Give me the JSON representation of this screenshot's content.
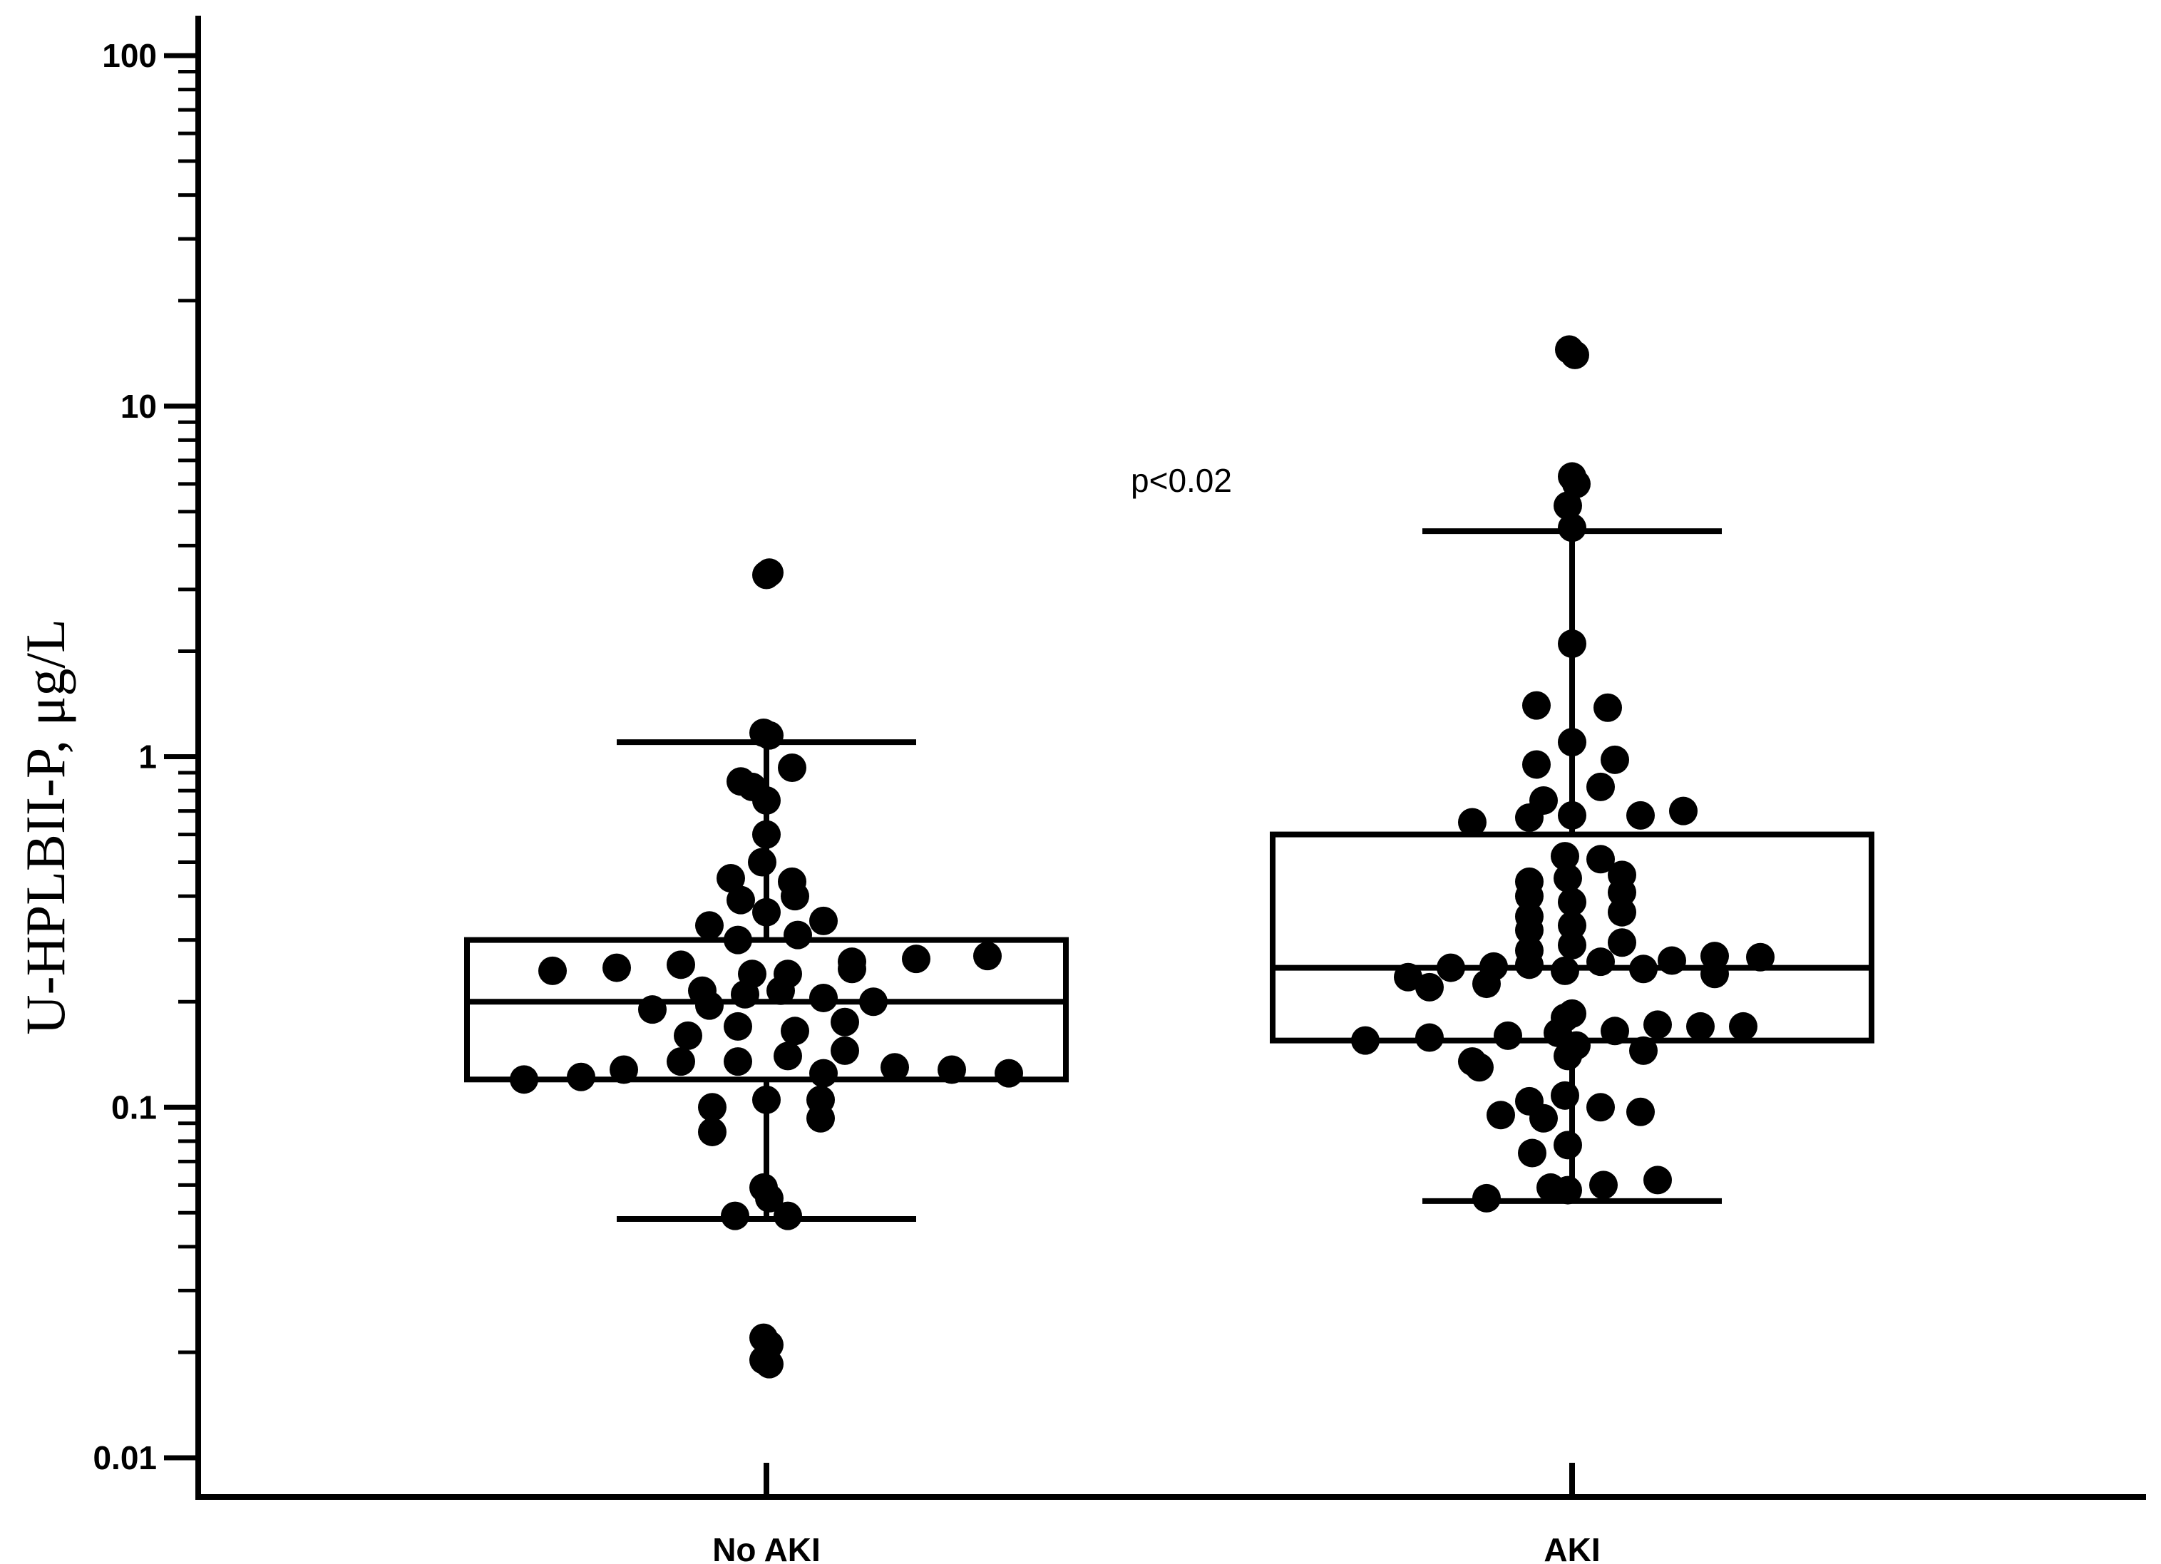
{
  "chart_data": {
    "type": "box",
    "title": "",
    "xlabel": "",
    "ylabel": "U-HPLBII-P, μg/L",
    "yscale": "log",
    "ylim": [
      0.01,
      100
    ],
    "yticks": [
      {
        "value": 0.01,
        "label": "0.01"
      },
      {
        "value": 0.1,
        "label": "0.1"
      },
      {
        "value": 1,
        "label": "1"
      },
      {
        "value": 10,
        "label": "10"
      },
      {
        "value": 100,
        "label": "100"
      }
    ],
    "categories": [
      "No AKI",
      "AKI"
    ],
    "annotation": "p<0.02",
    "colors": {
      "ink": "#000000",
      "background": "#ffffff"
    },
    "groups": [
      {
        "name": "No AKI",
        "box": {
          "q1": 0.12,
          "median": 0.2,
          "q3": 0.3,
          "whisker_low": 0.048,
          "whisker_high": 1.1
        },
        "points": [
          {
            "y": 3.3,
            "d": 0.0
          },
          {
            "y": 3.35,
            "d": 0.002
          },
          {
            "y": 1.17,
            "d": -0.002
          },
          {
            "y": 1.15,
            "d": 0.002
          },
          {
            "y": 0.93,
            "d": 0.018
          },
          {
            "y": 0.85,
            "d": -0.018
          },
          {
            "y": 0.82,
            "d": -0.01
          },
          {
            "y": 0.75,
            "d": 0.0
          },
          {
            "y": 0.6,
            "d": 0.0
          },
          {
            "y": 0.5,
            "d": -0.003
          },
          {
            "y": 0.45,
            "d": -0.025
          },
          {
            "y": 0.44,
            "d": 0.018
          },
          {
            "y": 0.4,
            "d": 0.02
          },
          {
            "y": 0.39,
            "d": -0.018
          },
          {
            "y": 0.36,
            "d": 0.0
          },
          {
            "y": 0.34,
            "d": 0.04
          },
          {
            "y": 0.33,
            "d": -0.04
          },
          {
            "y": 0.31,
            "d": 0.022
          },
          {
            "y": 0.3,
            "d": -0.02
          },
          {
            "y": 0.27,
            "d": 0.155
          },
          {
            "y": 0.265,
            "d": 0.105
          },
          {
            "y": 0.26,
            "d": 0.06
          },
          {
            "y": 0.255,
            "d": -0.06
          },
          {
            "y": 0.25,
            "d": -0.105
          },
          {
            "y": 0.248,
            "d": 0.06
          },
          {
            "y": 0.245,
            "d": -0.15
          },
          {
            "y": 0.24,
            "d": 0.015
          },
          {
            "y": 0.24,
            "d": -0.01
          },
          {
            "y": 0.215,
            "d": -0.045
          },
          {
            "y": 0.215,
            "d": 0.01
          },
          {
            "y": 0.21,
            "d": -0.015
          },
          {
            "y": 0.205,
            "d": 0.04
          },
          {
            "y": 0.2,
            "d": 0.075
          },
          {
            "y": 0.195,
            "d": -0.04
          },
          {
            "y": 0.19,
            "d": -0.08
          },
          {
            "y": 0.175,
            "d": 0.055
          },
          {
            "y": 0.17,
            "d": -0.02
          },
          {
            "y": 0.165,
            "d": 0.02
          },
          {
            "y": 0.16,
            "d": -0.055
          },
          {
            "y": 0.145,
            "d": 0.055
          },
          {
            "y": 0.14,
            "d": 0.015
          },
          {
            "y": 0.135,
            "d": -0.02
          },
          {
            "y": 0.135,
            "d": -0.06
          },
          {
            "y": 0.13,
            "d": 0.09
          },
          {
            "y": 0.128,
            "d": 0.13
          },
          {
            "y": 0.128,
            "d": -0.1
          },
          {
            "y": 0.125,
            "d": 0.04
          },
          {
            "y": 0.122,
            "d": -0.13
          },
          {
            "y": 0.12,
            "d": -0.17
          },
          {
            "y": 0.125,
            "d": 0.17
          },
          {
            "y": 0.105,
            "d": 0.038
          },
          {
            "y": 0.105,
            "d": 0.0
          },
          {
            "y": 0.1,
            "d": -0.038
          },
          {
            "y": 0.093,
            "d": 0.038
          },
          {
            "y": 0.085,
            "d": -0.038
          },
          {
            "y": 0.059,
            "d": -0.002
          },
          {
            "y": 0.055,
            "d": 0.002
          },
          {
            "y": 0.049,
            "d": -0.022
          },
          {
            "y": 0.049,
            "d": 0.015
          },
          {
            "y": 0.022,
            "d": -0.002
          },
          {
            "y": 0.021,
            "d": 0.002
          },
          {
            "y": 0.019,
            "d": -0.002
          },
          {
            "y": 0.0185,
            "d": 0.002
          }
        ]
      },
      {
        "name": "AKI",
        "box": {
          "q1": 0.155,
          "median": 0.25,
          "q3": 0.6,
          "whisker_low": 0.054,
          "whisker_high": 4.4
        },
        "points": [
          {
            "y": 14.5,
            "d": -0.002
          },
          {
            "y": 14.0,
            "d": 0.002
          },
          {
            "y": 6.3,
            "d": 0.0
          },
          {
            "y": 6.0,
            "d": 0.003
          },
          {
            "y": 5.2,
            "d": -0.003
          },
          {
            "y": 4.5,
            "d": 0.0
          },
          {
            "y": 2.1,
            "d": 0.0
          },
          {
            "y": 1.4,
            "d": -0.025
          },
          {
            "y": 1.38,
            "d": 0.025
          },
          {
            "y": 1.1,
            "d": 0.0
          },
          {
            "y": 0.98,
            "d": 0.03
          },
          {
            "y": 0.95,
            "d": -0.025
          },
          {
            "y": 0.82,
            "d": 0.02
          },
          {
            "y": 0.75,
            "d": -0.02
          },
          {
            "y": 0.7,
            "d": 0.078
          },
          {
            "y": 0.68,
            "d": 0.048
          },
          {
            "y": 0.68,
            "d": 0.0
          },
          {
            "y": 0.67,
            "d": -0.03
          },
          {
            "y": 0.65,
            "d": -0.07
          },
          {
            "y": 0.52,
            "d": -0.005
          },
          {
            "y": 0.51,
            "d": 0.02
          },
          {
            "y": 0.46,
            "d": 0.035
          },
          {
            "y": 0.45,
            "d": -0.003
          },
          {
            "y": 0.44,
            "d": -0.03
          },
          {
            "y": 0.41,
            "d": 0.035
          },
          {
            "y": 0.4,
            "d": -0.03
          },
          {
            "y": 0.385,
            "d": 0.0
          },
          {
            "y": 0.36,
            "d": 0.035
          },
          {
            "y": 0.35,
            "d": -0.03
          },
          {
            "y": 0.33,
            "d": 0.0
          },
          {
            "y": 0.32,
            "d": -0.03
          },
          {
            "y": 0.295,
            "d": 0.035
          },
          {
            "y": 0.29,
            "d": 0.0
          },
          {
            "y": 0.28,
            "d": -0.03
          },
          {
            "y": 0.27,
            "d": 0.1
          },
          {
            "y": 0.268,
            "d": 0.132
          },
          {
            "y": 0.262,
            "d": 0.07
          },
          {
            "y": 0.26,
            "d": 0.02
          },
          {
            "y": 0.255,
            "d": -0.03
          },
          {
            "y": 0.252,
            "d": -0.055
          },
          {
            "y": 0.25,
            "d": -0.085
          },
          {
            "y": 0.248,
            "d": 0.05
          },
          {
            "y": 0.245,
            "d": -0.005
          },
          {
            "y": 0.24,
            "d": 0.1
          },
          {
            "y": 0.235,
            "d": -0.115
          },
          {
            "y": 0.225,
            "d": -0.06
          },
          {
            "y": 0.22,
            "d": -0.1
          },
          {
            "y": 0.185,
            "d": 0.0
          },
          {
            "y": 0.18,
            "d": -0.005
          },
          {
            "y": 0.172,
            "d": 0.06
          },
          {
            "y": 0.17,
            "d": 0.12
          },
          {
            "y": 0.17,
            "d": 0.09
          },
          {
            "y": 0.165,
            "d": 0.03
          },
          {
            "y": 0.163,
            "d": -0.01
          },
          {
            "y": 0.16,
            "d": -0.045
          },
          {
            "y": 0.158,
            "d": -0.1
          },
          {
            "y": 0.155,
            "d": -0.145
          },
          {
            "y": 0.15,
            "d": 0.003
          },
          {
            "y": 0.145,
            "d": 0.05
          },
          {
            "y": 0.14,
            "d": -0.003
          },
          {
            "y": 0.135,
            "d": -0.07
          },
          {
            "y": 0.13,
            "d": -0.065
          },
          {
            "y": 0.108,
            "d": -0.005
          },
          {
            "y": 0.104,
            "d": -0.03
          },
          {
            "y": 0.1,
            "d": 0.02
          },
          {
            "y": 0.097,
            "d": 0.048
          },
          {
            "y": 0.095,
            "d": -0.05
          },
          {
            "y": 0.093,
            "d": -0.02
          },
          {
            "y": 0.078,
            "d": -0.003
          },
          {
            "y": 0.074,
            "d": -0.028
          },
          {
            "y": 0.062,
            "d": 0.06
          },
          {
            "y": 0.06,
            "d": 0.022
          },
          {
            "y": 0.059,
            "d": -0.015
          },
          {
            "y": 0.058,
            "d": -0.003
          },
          {
            "y": 0.055,
            "d": -0.06
          }
        ]
      }
    ]
  }
}
